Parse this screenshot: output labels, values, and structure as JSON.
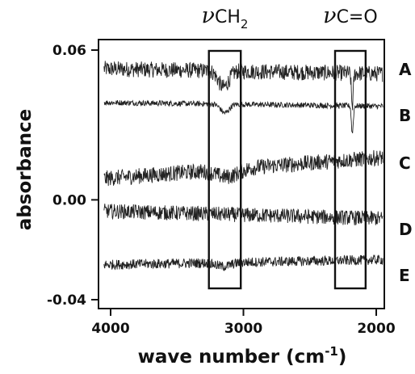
{
  "chart_data": {
    "type": "line",
    "xlabel": "wave number (cm",
    "xlabel_sup": "-1",
    "xlabel_close": ")",
    "ylabel": "absorbance",
    "xlim": [
      4000,
      1950
    ],
    "x_reversed": true,
    "ylim": [
      -0.04,
      0.06
    ],
    "xticks": [
      4000,
      3000,
      2000
    ],
    "xtick_labels": [
      "4000",
      "3000",
      "2000"
    ],
    "yticks": [
      0.06,
      0.0,
      -0.04
    ],
    "ytick_labels": [
      "0.06",
      "0.00",
      "-0.04"
    ],
    "grid": false,
    "bands": [
      {
        "sym": "ν",
        "label": "CH",
        "sub": "2",
        "x_range": [
          3260,
          3020
        ]
      },
      {
        "sym": "ν",
        "label": "C=O",
        "sub": "",
        "x_range": [
          2310,
          2080
        ]
      }
    ],
    "series": [
      {
        "label": "A",
        "y_start": 0.0525,
        "y_end": 0.0505,
        "noise": 0.0032,
        "features": [
          {
            "x": 3150,
            "depth": 0.0065,
            "width": 55
          },
          {
            "x": 2180,
            "depth": 0.013,
            "width": 10
          }
        ]
      },
      {
        "label": "B",
        "y_start": 0.039,
        "y_end": 0.0375,
        "noise": 0.0011,
        "features": [
          {
            "x": 3140,
            "depth": 0.0035,
            "width": 45
          },
          {
            "x": 2180,
            "depth": 0.011,
            "width": 10
          }
        ]
      },
      {
        "label": "C",
        "y_start": 0.0085,
        "y_end": 0.017,
        "noise": 0.0032,
        "features": [
          {
            "x": 3120,
            "depth": 0.003,
            "width": 120
          }
        ]
      },
      {
        "label": "D",
        "y_start": -0.0045,
        "y_end": -0.0075,
        "noise": 0.003,
        "features": []
      },
      {
        "label": "E",
        "y_start": -0.026,
        "y_end": -0.024,
        "noise": 0.002,
        "features": [
          {
            "x": 3150,
            "depth": 0.0015,
            "width": 80
          }
        ]
      }
    ]
  }
}
